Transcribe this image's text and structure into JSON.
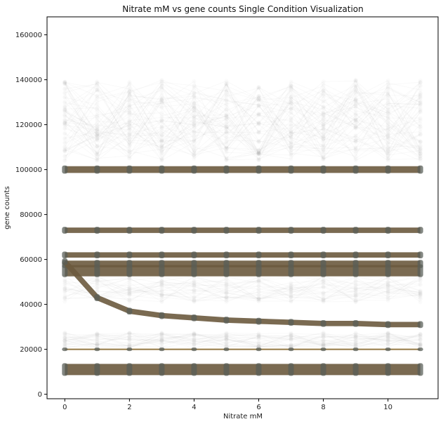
{
  "chart_data": {
    "type": "line",
    "title": "Nitrate mM vs gene counts Single Condition Visualization",
    "xlabel": "Nitrate mM",
    "ylabel": "gene counts",
    "x": [
      0,
      1,
      2,
      3,
      4,
      5,
      6,
      7,
      8,
      9,
      10,
      11
    ],
    "xlim": [
      -0.55,
      11.55
    ],
    "ylim": [
      -2000,
      168000
    ],
    "xticks": [
      0,
      2,
      4,
      6,
      8,
      10
    ],
    "yticks": [
      0,
      20000,
      40000,
      60000,
      80000,
      100000,
      120000,
      140000,
      160000
    ],
    "grid": false,
    "legend": "none",
    "colors": {
      "band": "#6b5a3e",
      "faint": "#b8b8b8",
      "marker": "#5a5f58",
      "flat_line": "#8a6a30"
    },
    "series": [
      {
        "values": [
          100000,
          100000,
          100000,
          100000,
          100000,
          100000,
          100000,
          100000,
          100000,
          100000,
          100000,
          100000
        ],
        "spread": 1500
      },
      {
        "values": [
          73000,
          73000,
          73000,
          73000,
          73000,
          73000,
          73000,
          73000,
          73000,
          73000,
          73000,
          73000
        ],
        "spread": 1200
      },
      {
        "values": [
          62000,
          62000,
          62000,
          62000,
          62000,
          62000,
          62000,
          62000,
          62000,
          62000,
          62000,
          62000
        ],
        "spread": 1200
      },
      {
        "values": [
          58000,
          58000,
          58000,
          58000,
          58000,
          58000,
          58000,
          58000,
          58000,
          58000,
          58000,
          58000
        ],
        "spread": 1500
      },
      {
        "values": [
          55000,
          55000,
          55000,
          55000,
          55000,
          55000,
          55000,
          55000,
          55000,
          55000,
          55000,
          55000
        ],
        "spread": 2500
      },
      {
        "values": [
          59000,
          43000,
          37000,
          35000,
          34000,
          33000,
          32500,
          32000,
          31500,
          31500,
          31000,
          31000
        ],
        "spread": 1200
      },
      {
        "values": [
          20000,
          20000,
          20000,
          20000,
          20000,
          20000,
          20000,
          20000,
          20000,
          20000,
          20000,
          20000
        ],
        "spread": 200
      },
      {
        "values": [
          11000,
          11000,
          11000,
          11000,
          11000,
          11000,
          11000,
          11000,
          11000,
          11000,
          11000,
          11000
        ],
        "spread": 2500
      }
    ],
    "faint_bands": [
      {
        "center": 122000,
        "spread": 18000
      },
      {
        "center": 24000,
        "spread": 3500
      },
      {
        "center": 47000,
        "spread": 6000
      }
    ]
  }
}
